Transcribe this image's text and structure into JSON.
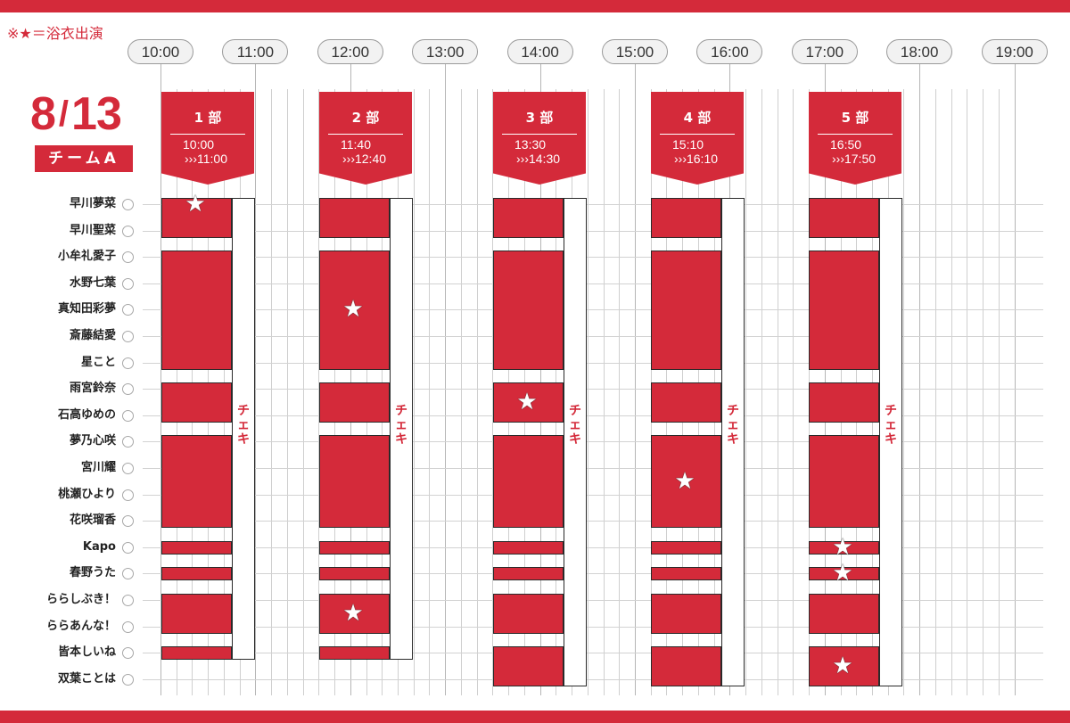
{
  "legend": "※★＝浴衣出演",
  "date": {
    "month": "8",
    "slash": "/",
    "day": "13"
  },
  "team": "チームA",
  "timeline": {
    "hours": [
      "10:00",
      "11:00",
      "12:00",
      "13:00",
      "14:00",
      "15:00",
      "16:00",
      "17:00",
      "18:00",
      "19:00"
    ]
  },
  "parts": [
    {
      "label": "1 部",
      "start": "10:00",
      "end": "›››11:00"
    },
    {
      "label": "2 部",
      "start": "11:40",
      "end": "›››12:40"
    },
    {
      "label": "3 部",
      "start": "13:30",
      "end": "›››14:30"
    },
    {
      "label": "4 部",
      "start": "15:10",
      "end": "›››16:10"
    },
    {
      "label": "5 部",
      "start": "16:50",
      "end": "›››17:50"
    }
  ],
  "members": [
    "早川夢菜",
    "早川聖菜",
    "小牟礼愛子",
    "水野七葉",
    "真知田彩夢",
    "斎藤結愛",
    "星こと",
    "雨宮鈴奈",
    "石高ゆめの",
    "夢乃心咲",
    "宮川耀",
    "桃瀬ひより",
    "花咲瑠香",
    "Kapo",
    "春野うた",
    "ららしぶき！",
    "ららあんな！",
    "皆本しいね",
    "双葉ことは"
  ],
  "cheki_label": [
    "チ",
    "ェ",
    "キ"
  ],
  "schedule": [
    {
      "part": 1,
      "groups": [
        {
          "rows": [
            0,
            1
          ],
          "yukata_row": 0
        },
        {
          "rows": [
            2,
            6
          ]
        },
        {
          "rows": [
            7,
            8
          ]
        },
        {
          "rows": [
            9,
            12
          ]
        },
        {
          "rows": [
            13,
            13
          ]
        },
        {
          "rows": [
            14,
            14
          ]
        },
        {
          "rows": [
            15,
            16
          ]
        },
        {
          "rows": [
            17,
            17
          ]
        }
      ]
    },
    {
      "part": 2,
      "groups": [
        {
          "rows": [
            0,
            1
          ]
        },
        {
          "rows": [
            2,
            6
          ],
          "yukata_row": 4
        },
        {
          "rows": [
            7,
            8
          ]
        },
        {
          "rows": [
            9,
            12
          ]
        },
        {
          "rows": [
            13,
            13
          ]
        },
        {
          "rows": [
            14,
            14
          ]
        },
        {
          "rows": [
            15,
            16
          ],
          "yukata_row": 15.5
        },
        {
          "rows": [
            17,
            17
          ]
        }
      ]
    },
    {
      "part": 3,
      "groups": [
        {
          "rows": [
            0,
            1
          ]
        },
        {
          "rows": [
            2,
            6
          ]
        },
        {
          "rows": [
            7,
            8
          ],
          "yukata_row": 7.5
        },
        {
          "rows": [
            9,
            12
          ]
        },
        {
          "rows": [
            13,
            13
          ]
        },
        {
          "rows": [
            14,
            14
          ]
        },
        {
          "rows": [
            15,
            16
          ]
        },
        {
          "rows": [
            17,
            18
          ]
        }
      ]
    },
    {
      "part": 4,
      "groups": [
        {
          "rows": [
            0,
            1
          ]
        },
        {
          "rows": [
            2,
            6
          ]
        },
        {
          "rows": [
            7,
            8
          ]
        },
        {
          "rows": [
            9,
            12
          ],
          "yukata_row": 10.5
        },
        {
          "rows": [
            13,
            13
          ]
        },
        {
          "rows": [
            14,
            14
          ]
        },
        {
          "rows": [
            15,
            16
          ]
        },
        {
          "rows": [
            17,
            18
          ]
        }
      ]
    },
    {
      "part": 5,
      "groups": [
        {
          "rows": [
            0,
            1
          ]
        },
        {
          "rows": [
            2,
            6
          ]
        },
        {
          "rows": [
            7,
            8
          ]
        },
        {
          "rows": [
            9,
            12
          ]
        },
        {
          "rows": [
            13,
            13
          ],
          "yukata_row": 13
        },
        {
          "rows": [
            14,
            14
          ],
          "yukata_row": 14
        },
        {
          "rows": [
            15,
            16
          ]
        },
        {
          "rows": [
            17,
            18
          ],
          "yukata_row": 17.5
        }
      ]
    }
  ],
  "colors": {
    "accent": "#d42a3a",
    "grid": "#cfcfcf",
    "outline": "#2a2a2a"
  }
}
